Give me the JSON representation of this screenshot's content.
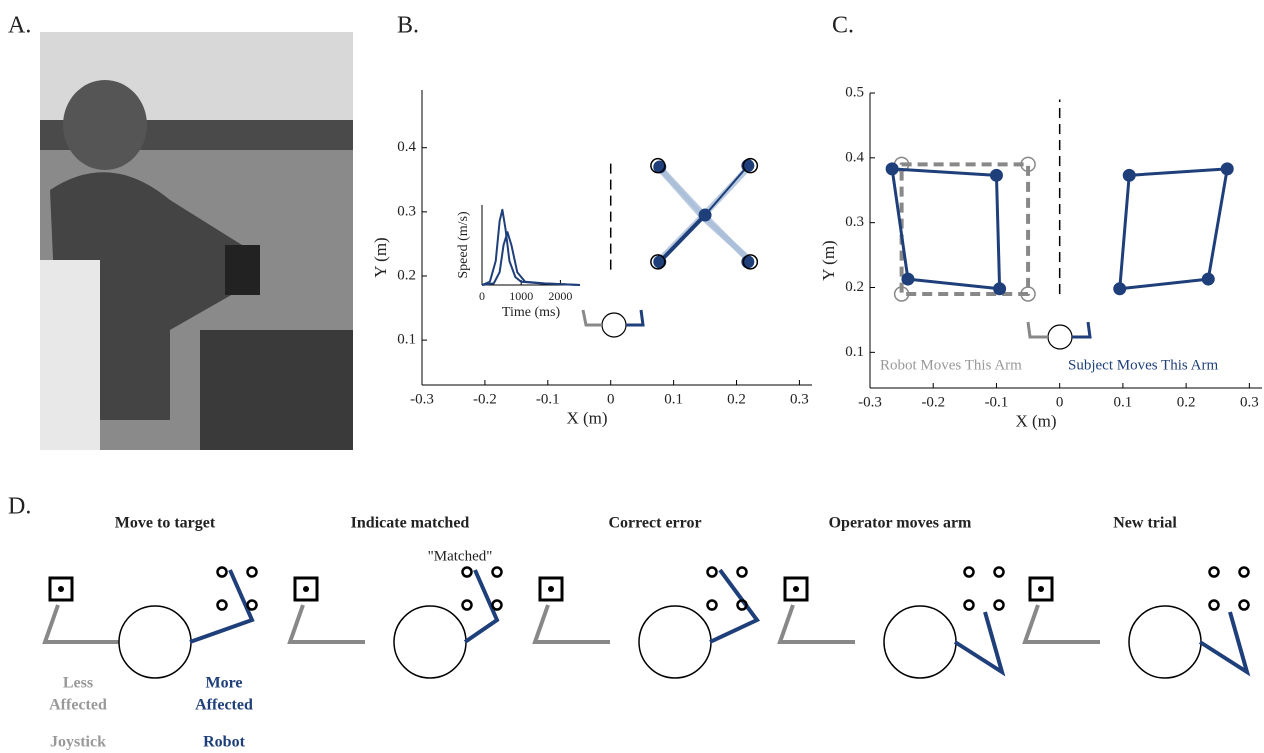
{
  "panels": [
    "A.",
    "B.",
    "C.",
    "D."
  ],
  "chart_data": [
    {
      "type": "line",
      "xlabel": "X (m)",
      "ylabel": "Y (m)",
      "xlim": [
        -0.3,
        0.32
      ],
      "ylim": [
        0.03,
        0.49
      ],
      "xticks": [
        -0.3,
        -0.2,
        -0.1,
        0,
        0.1,
        0.2,
        0.3
      ],
      "yticks": [
        0.1,
        0.2,
        0.3,
        0.4
      ],
      "series": [
        {
          "color": "#a9bdd8",
          "width": 6,
          "x": [
            0.075,
            0.15,
            0.222
          ],
          "values": [
            0.372,
            0.293,
            0.222
          ]
        },
        {
          "color": "#a9bdd8",
          "width": 6,
          "x": [
            0.075,
            0.15,
            0.222
          ],
          "values": [
            0.222,
            0.297,
            0.372
          ]
        },
        {
          "color": "#a9bdd8",
          "width": 6,
          "x": [
            0.08,
            0.148,
            0.218
          ],
          "values": [
            0.365,
            0.29,
            0.228
          ]
        },
        {
          "color": "#1f3f7a",
          "width": 4,
          "x": [
            0.15,
            0.078
          ],
          "values": [
            0.295,
            0.222
          ]
        },
        {
          "color": "#1f3f7a",
          "width": 2,
          "x": [
            0.15,
            0.19,
            0.218
          ],
          "values": [
            0.295,
            0.34,
            0.372
          ]
        },
        {
          "color": "#1f3f7a",
          "markers": "filled",
          "line": false,
          "x": [
            0.15,
            0.078,
            0.218,
            0.078,
            0.218
          ],
          "values": [
            0.295,
            0.222,
            0.372,
            0.37,
            0.222
          ]
        },
        {
          "color": "#000000",
          "markers": "open",
          "line": false,
          "x": [
            0.075,
            0.222,
            0.075,
            0.222
          ],
          "values": [
            0.372,
            0.372,
            0.222,
            0.222
          ]
        },
        {
          "color": "#000000",
          "width": 1.5,
          "dash": true,
          "x": [
            0,
            0
          ],
          "values": [
            0.21,
            0.38
          ]
        }
      ]
    },
    {
      "type": "line",
      "xlabel": "Time (ms)",
      "ylabel": "Speed (m/s)",
      "xlim": [
        0,
        2500
      ],
      "ylim": [
        0,
        0.5
      ],
      "xticks": [
        0,
        1000,
        2000
      ],
      "series": [
        {
          "color": "#1f3f7a",
          "width": 2,
          "x": [
            0,
            200,
            350,
            450,
            520,
            600,
            700,
            850,
            1000,
            1500,
            2500
          ],
          "values": [
            0,
            0.02,
            0.15,
            0.4,
            0.47,
            0.35,
            0.15,
            0.05,
            0.02,
            0.01,
            0
          ]
        },
        {
          "color": "#1f3f7a",
          "width": 2,
          "x": [
            0,
            300,
            450,
            550,
            650,
            750,
            900,
            1100,
            1600,
            2500
          ],
          "values": [
            0,
            0.01,
            0.08,
            0.25,
            0.33,
            0.25,
            0.08,
            0.02,
            0.01,
            0
          ]
        }
      ]
    },
    {
      "type": "line",
      "xlabel": "X (m)",
      "ylabel": "Y (m)",
      "xlim": [
        -0.3,
        0.32
      ],
      "ylim": [
        0.045,
        0.5
      ],
      "xticks": [
        -0.3,
        -0.2,
        -0.1,
        0,
        0.1,
        0.2,
        0.3
      ],
      "yticks": [
        0.1,
        0.2,
        0.3,
        0.4,
        0.5
      ],
      "annotations": [
        "Robot Moves This Arm",
        "Subject Moves This Arm"
      ],
      "series": [
        {
          "color": "#888888",
          "width": 4,
          "dash": true,
          "closed": true,
          "markers": "open",
          "x": [
            -0.25,
            -0.05,
            -0.05,
            -0.25
          ],
          "values": [
            0.39,
            0.39,
            0.19,
            0.19
          ]
        },
        {
          "color": "#1f3f7a",
          "width": 3,
          "closed": true,
          "markers": "filled",
          "x": [
            -0.265,
            -0.1,
            -0.095,
            -0.24
          ],
          "values": [
            0.383,
            0.373,
            0.198,
            0.213
          ]
        },
        {
          "color": "#1f3f7a",
          "width": 3,
          "closed": true,
          "markers": "filled",
          "x": [
            0.11,
            0.265,
            0.235,
            0.095
          ],
          "values": [
            0.373,
            0.383,
            0.213,
            0.198
          ]
        },
        {
          "color": "#000000",
          "width": 1.5,
          "dash": true,
          "x": [
            0,
            0
          ],
          "values": [
            0.19,
            0.49
          ]
        }
      ]
    }
  ],
  "diagram": {
    "steps": [
      "Move to target",
      "Indicate matched",
      "Correct error",
      "Operator moves arm",
      "New trial"
    ],
    "quote": "\"Matched\"",
    "left_labels": [
      "Less",
      "Affected",
      "Joystick"
    ],
    "right_labels": [
      "More",
      "Affected",
      "Robot"
    ]
  }
}
